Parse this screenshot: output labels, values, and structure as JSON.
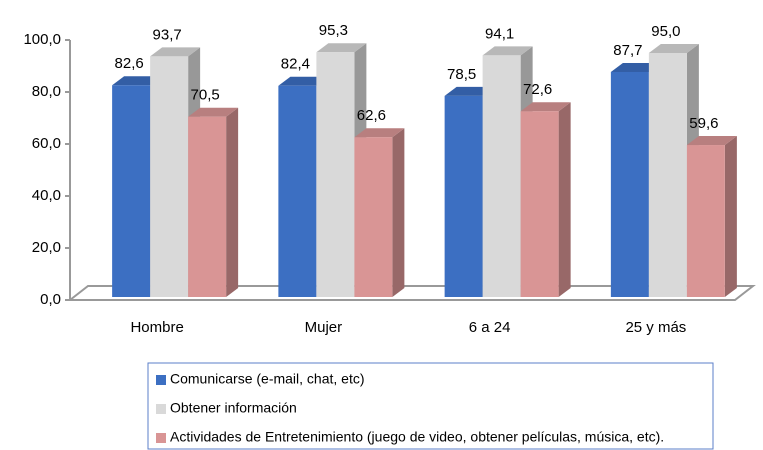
{
  "chart_data": {
    "type": "bar3d",
    "categories": [
      "Hombre",
      "Mujer",
      "6 a 24",
      "25 y más"
    ],
    "series": [
      {
        "name": "Comunicarse (e-mail, chat, etc)",
        "color": "#3c6fc2",
        "values": [
          82.6,
          82.4,
          78.5,
          87.7
        ],
        "value_labels": [
          "82,6",
          "82,4",
          "78,5",
          "87,7"
        ]
      },
      {
        "name": "Obtener información",
        "color": "#d9d9d9",
        "values": [
          93.7,
          95.3,
          94.1,
          95.0
        ],
        "value_labels": [
          "93,7",
          "95,3",
          "94,1",
          "95,0"
        ]
      },
      {
        "name": "Actividades de Entretenimiento (juego de video, obtener películas, música, etc).",
        "color": "#d99595",
        "values": [
          70.5,
          62.6,
          72.6,
          59.6
        ],
        "value_labels": [
          "70,5",
          "62,6",
          "72,6",
          "59,6"
        ]
      }
    ],
    "ylim": [
      0,
      100
    ],
    "yticks": [
      {
        "value": 0,
        "label": "0,0"
      },
      {
        "value": 20,
        "label": "20,0"
      },
      {
        "value": 40,
        "label": "40,0"
      },
      {
        "value": 60,
        "label": "60,0"
      },
      {
        "value": 80,
        "label": "80,0"
      },
      {
        "value": 100,
        "label": "100,0"
      }
    ],
    "legend": "bottom"
  }
}
